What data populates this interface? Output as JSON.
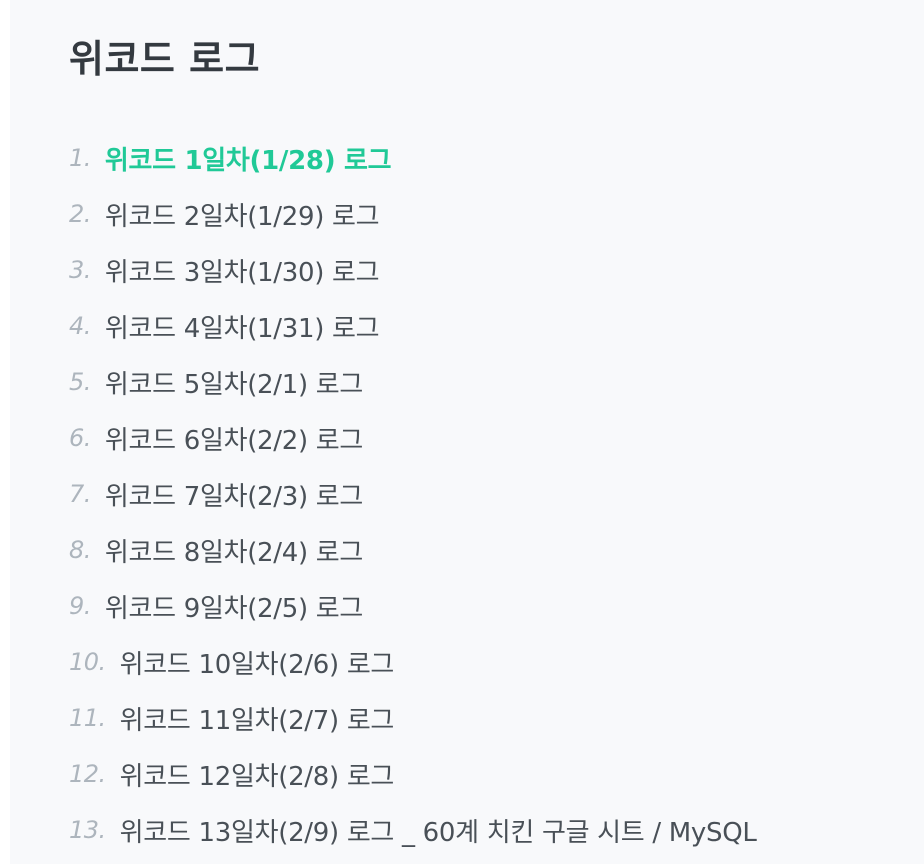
{
  "series": {
    "title": "위코드 로그",
    "accent_color": "#20c997",
    "items": [
      {
        "number": "1.",
        "label": "위코드 1일차(1/28) 로그",
        "active": true
      },
      {
        "number": "2.",
        "label": "위코드 2일차(1/29) 로그",
        "active": false
      },
      {
        "number": "3.",
        "label": "위코드 3일차(1/30) 로그",
        "active": false
      },
      {
        "number": "4.",
        "label": "위코드 4일차(1/31) 로그",
        "active": false
      },
      {
        "number": "5.",
        "label": "위코드 5일차(2/1) 로그",
        "active": false
      },
      {
        "number": "6.",
        "label": "위코드 6일차(2/2) 로그",
        "active": false
      },
      {
        "number": "7.",
        "label": "위코드 7일차(2/3) 로그",
        "active": false
      },
      {
        "number": "8.",
        "label": "위코드 8일차(2/4) 로그",
        "active": false
      },
      {
        "number": "9.",
        "label": "위코드 9일차(2/5) 로그",
        "active": false
      },
      {
        "number": "10.",
        "label": "위코드 10일차(2/6) 로그",
        "active": false
      },
      {
        "number": "11.",
        "label": "위코드 11일차(2/7) 로그",
        "active": false
      },
      {
        "number": "12.",
        "label": "위코드 12일차(2/8) 로그",
        "active": false
      },
      {
        "number": "13.",
        "label": "위코드 13일차(2/9) 로그 _ 60계 치킨 구글 시트 / MySQL",
        "active": false
      }
    ]
  }
}
